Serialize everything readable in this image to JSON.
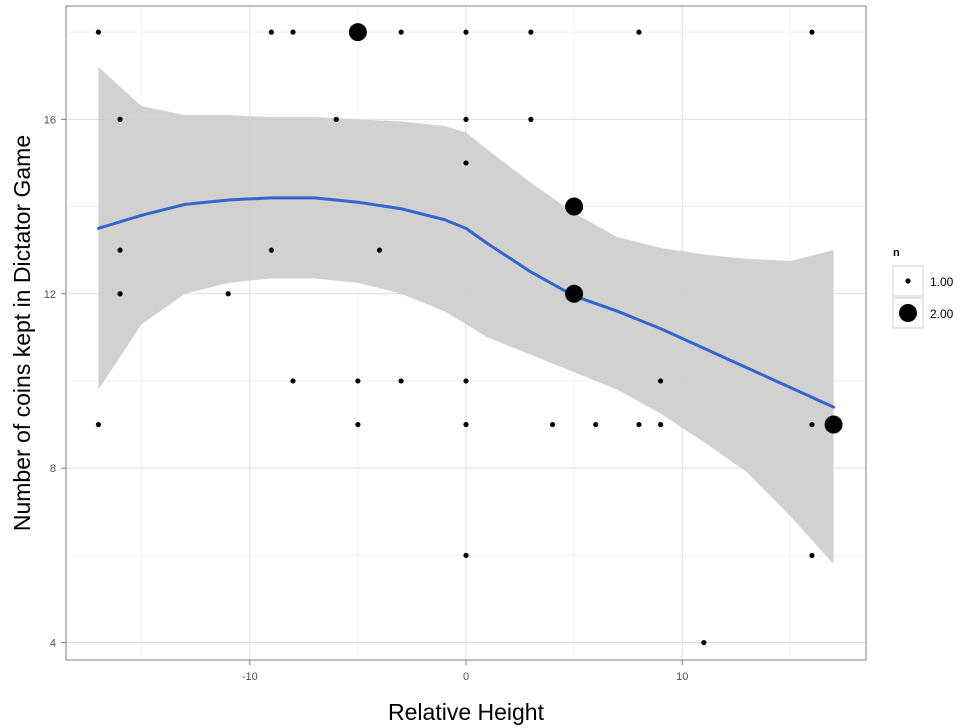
{
  "chart_data": {
    "type": "scatter",
    "title": "",
    "xlabel": "Relative Height",
    "ylabel": "Number of coins kept in Dictator Game",
    "xlim": [
      -18.5,
      18.5
    ],
    "ylim": [
      3.6,
      18.6
    ],
    "x_ticks": [
      -10,
      0,
      10
    ],
    "x_tick_labels": [
      "-10",
      "0",
      "10"
    ],
    "y_ticks": [
      4,
      8,
      12,
      16
    ],
    "y_tick_labels": [
      "4",
      "8",
      "12",
      "16"
    ],
    "grid": true,
    "legend": {
      "title": "n",
      "position": "right",
      "entries": [
        {
          "label": "1.00",
          "value": 1
        },
        {
          "label": "2.00",
          "value": 2
        }
      ]
    },
    "series": [
      {
        "type": "points",
        "color": "#000000",
        "points": [
          {
            "x": -17,
            "y": 18,
            "n": 1
          },
          {
            "x": -9,
            "y": 18,
            "n": 1
          },
          {
            "x": -8,
            "y": 18,
            "n": 1
          },
          {
            "x": -5,
            "y": 18,
            "n": 2
          },
          {
            "x": -3,
            "y": 18,
            "n": 1
          },
          {
            "x": 0,
            "y": 18,
            "n": 1
          },
          {
            "x": 3,
            "y": 18,
            "n": 1
          },
          {
            "x": 8,
            "y": 18,
            "n": 1
          },
          {
            "x": 16,
            "y": 18,
            "n": 1
          },
          {
            "x": -16,
            "y": 16,
            "n": 1
          },
          {
            "x": -6,
            "y": 16,
            "n": 1
          },
          {
            "x": 0,
            "y": 16,
            "n": 1
          },
          {
            "x": 3,
            "y": 16,
            "n": 1
          },
          {
            "x": 0,
            "y": 15,
            "n": 1
          },
          {
            "x": 5,
            "y": 14,
            "n": 2
          },
          {
            "x": -16,
            "y": 13,
            "n": 1
          },
          {
            "x": -9,
            "y": 13,
            "n": 1
          },
          {
            "x": -4,
            "y": 13,
            "n": 1
          },
          {
            "x": -16,
            "y": 12,
            "n": 1
          },
          {
            "x": -11,
            "y": 12,
            "n": 1
          },
          {
            "x": 5,
            "y": 12,
            "n": 2
          },
          {
            "x": -8,
            "y": 10,
            "n": 1
          },
          {
            "x": -5,
            "y": 10,
            "n": 1
          },
          {
            "x": -3,
            "y": 10,
            "n": 1
          },
          {
            "x": 0,
            "y": 10,
            "n": 1
          },
          {
            "x": 9,
            "y": 10,
            "n": 1
          },
          {
            "x": -17,
            "y": 9,
            "n": 1
          },
          {
            "x": -5,
            "y": 9,
            "n": 1
          },
          {
            "x": 0,
            "y": 9,
            "n": 1
          },
          {
            "x": 4,
            "y": 9,
            "n": 1
          },
          {
            "x": 6,
            "y": 9,
            "n": 1
          },
          {
            "x": 8,
            "y": 9,
            "n": 1
          },
          {
            "x": 9,
            "y": 9,
            "n": 1
          },
          {
            "x": 16,
            "y": 9,
            "n": 1
          },
          {
            "x": 17,
            "y": 9,
            "n": 2
          },
          {
            "x": 0,
            "y": 6,
            "n": 1
          },
          {
            "x": 16,
            "y": 6,
            "n": 1
          },
          {
            "x": 11,
            "y": 4,
            "n": 1
          }
        ]
      },
      {
        "type": "smooth",
        "color": "#3366cc",
        "band_color": "#cccccc",
        "x": [
          -17,
          -15,
          -13,
          -11,
          -9,
          -7,
          -5,
          -3,
          -1,
          0,
          1,
          3,
          5,
          7,
          9,
          11,
          13,
          15,
          17
        ],
        "y": [
          13.5,
          13.8,
          14.05,
          14.15,
          14.2,
          14.2,
          14.1,
          13.95,
          13.7,
          13.5,
          13.15,
          12.5,
          11.95,
          11.6,
          11.2,
          10.75,
          10.3,
          9.85,
          9.4
        ],
        "lower": [
          9.8,
          11.3,
          12.0,
          12.25,
          12.35,
          12.35,
          12.25,
          12.0,
          11.6,
          11.3,
          11.0,
          10.6,
          10.2,
          9.8,
          9.25,
          8.6,
          7.9,
          6.9,
          5.8
        ],
        "upper": [
          17.2,
          16.3,
          16.1,
          16.1,
          16.05,
          16.05,
          16.0,
          15.95,
          15.85,
          15.7,
          15.3,
          14.55,
          13.85,
          13.3,
          13.05,
          12.9,
          12.8,
          12.75,
          13.0
        ]
      }
    ]
  }
}
